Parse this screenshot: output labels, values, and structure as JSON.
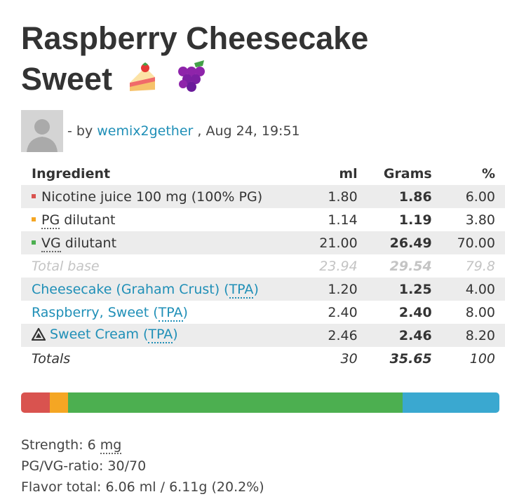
{
  "title_line1": "Raspberry Cheesecake",
  "title_line2": "Sweet",
  "title_emoji": [
    "cake-slice-emoji",
    "grapes-emoji"
  ],
  "author": {
    "prefix": "- by",
    "name": "wemix2gether",
    "date": ", Aug 24, 19:51"
  },
  "table": {
    "headers": {
      "ingredient": "Ingredient",
      "ml": "ml",
      "grams": "Grams",
      "pct": "%"
    },
    "rows": [
      {
        "name": "Nicotine juice 100 mg (100% PG)",
        "ml": "1.80",
        "grams": "1.86",
        "pct": "6.00",
        "color": "#d9534f"
      },
      {
        "name_abbr": "PG",
        "name_rest": " dilutant",
        "ml": "1.14",
        "grams": "1.19",
        "pct": "3.80",
        "color": "#f5a623"
      },
      {
        "name_abbr": "VG",
        "name_rest": " dilutant",
        "ml": "21.00",
        "grams": "26.49",
        "pct": "70.00",
        "color": "#4caf50"
      }
    ],
    "total_base": {
      "label": "Total base",
      "ml": "23.94",
      "grams": "29.54",
      "pct": "79.8"
    },
    "flavors": [
      {
        "name": "Cheesecake (Graham Crust) (",
        "abbr": "TPA",
        "close": ")",
        "ml": "1.20",
        "grams": "1.25",
        "pct": "4.00",
        "warning": false
      },
      {
        "name": "Raspberry, Sweet (",
        "abbr": "TPA",
        "close": ")",
        "ml": "2.40",
        "grams": "2.40",
        "pct": "8.00",
        "warning": false
      },
      {
        "name": "Sweet Cream (",
        "abbr": "TPA",
        "close": ")",
        "ml": "2.46",
        "grams": "2.46",
        "pct": "8.20",
        "warning": true
      }
    ],
    "totals": {
      "label": "Totals",
      "ml": "30",
      "grams": "35.65",
      "pct": "100"
    }
  },
  "bar_segments": [
    {
      "name": "nicotine",
      "pct": 6.0,
      "color": "#d9534f"
    },
    {
      "name": "pg",
      "pct": 3.8,
      "color": "#f5a623"
    },
    {
      "name": "vg",
      "pct": 70.0,
      "color": "#4caf50"
    },
    {
      "name": "flavor",
      "pct": 20.2,
      "color": "#3aa8d0"
    }
  ],
  "footer": {
    "strength_prefix": "Strength: 6 ",
    "strength_unit": "mg",
    "ratio": "PG/VG-ratio: 30/70",
    "flavor_total": "Flavor total: 6.06 ml / 6.11g (20.2%)"
  }
}
